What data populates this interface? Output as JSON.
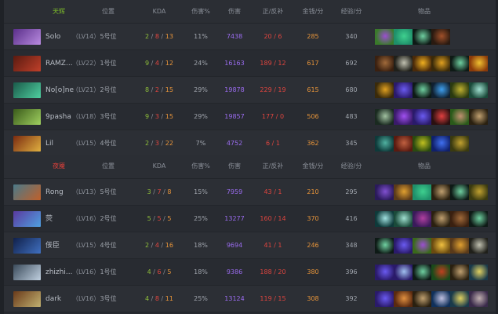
{
  "headers": {
    "position": "位置",
    "kda": "KDA",
    "damage_pct": "伤害%",
    "damage": "伤害",
    "lasthits": "正/反补",
    "gpm": "金钱/分",
    "xpm": "经验/分",
    "items": "物品"
  },
  "teams": [
    {
      "name": "天辉",
      "color": "#7fbf2a",
      "players": [
        {
          "name": "Solo",
          "level": "（LV14）",
          "position": "5号位",
          "k": "2",
          "d": "8",
          "a": "13",
          "damage_pct": "11%",
          "damage": "7438",
          "lasthits": "20 / 6",
          "gpm": "285",
          "xpm": "340",
          "avatar": [
            "#5a2f8a",
            "#b98be0"
          ],
          "items": [
            [
              "#3a7a2a",
              "#9b4fd0"
            ],
            [
              "#1f8f6a",
              "#3fd08f"
            ],
            [
              "#0e1a16",
              "#6fd0a0"
            ],
            [
              "#2a1a10",
              "#a0502a"
            ]
          ]
        },
        {
          "name": "RAMZ...",
          "level": "（LV22）",
          "position": "1号位",
          "k": "9",
          "d": "4",
          "a": "12",
          "damage_pct": "24%",
          "damage": "16163",
          "lasthits": "189 / 12",
          "gpm": "617",
          "xpm": "692",
          "avatar": [
            "#5a1a10",
            "#c0402a"
          ],
          "items": [
            [
              "#3a2010",
              "#a06a3a"
            ],
            [
              "#20201a",
              "#c0c0b0"
            ],
            [
              "#4a2a0a",
              "#f0b020"
            ],
            [
              "#3a2a0a",
              "#e0a020"
            ],
            [
              "#0e1a16",
              "#6fd0a0"
            ],
            [
              "#8a3a0a",
              "#f0c030"
            ]
          ]
        },
        {
          "name": "No[o]ne",
          "level": "（LV21）",
          "position": "2号位",
          "k": "8",
          "d": "2",
          "a": "15",
          "damage_pct": "29%",
          "damage": "19878",
          "lasthits": "229 / 19",
          "gpm": "615",
          "xpm": "680",
          "avatar": [
            "#1a5a4a",
            "#4fd0a0"
          ],
          "items": [
            [
              "#3a2a0a",
              "#e0a020"
            ],
            [
              "#2a1a6a",
              "#6a5af0"
            ],
            [
              "#0e1a16",
              "#6fd0a0"
            ],
            [
              "#102030",
              "#3fa0f0"
            ],
            [
              "#2a3a10",
              "#c0b030"
            ],
            [
              "#1a4a3a",
              "#a0e0d0"
            ]
          ]
        },
        {
          "name": "9pasha",
          "level": "（LV18）",
          "position": "3号位",
          "k": "9",
          "d": "3",
          "a": "15",
          "damage_pct": "29%",
          "damage": "19857",
          "lasthits": "177 / 0",
          "gpm": "506",
          "xpm": "483",
          "avatar": [
            "#3a5a1a",
            "#a0d060"
          ],
          "items": [
            [
              "#1a2a20",
              "#a0c0a0"
            ],
            [
              "#3a1a6a",
              "#a050f0"
            ],
            [
              "#2a1a6a",
              "#6a5af0"
            ],
            [
              "#2a1010",
              "#e04040"
            ],
            [
              "#2a5a1a",
              "#c09070"
            ],
            [
              "#2a2010",
              "#c0a070"
            ]
          ]
        },
        {
          "name": "Lil",
          "level": "（LV15）",
          "position": "4号位",
          "k": "2",
          "d": "3",
          "a": "22",
          "damage_pct": "7%",
          "damage": "4752",
          "lasthits": "6 / 1",
          "gpm": "362",
          "xpm": "345",
          "avatar": [
            "#7a2a10",
            "#e0b040"
          ],
          "items": [
            [
              "#0e3a3a",
              "#4fb0a0"
            ],
            [
              "#5a1a10",
              "#c06040"
            ],
            [
              "#2a4a10",
              "#c0c020"
            ],
            [
              "#10206a",
              "#4070f0"
            ],
            [
              "#3a3a10",
              "#c0a030"
            ]
          ]
        }
      ]
    },
    {
      "name": "夜魇",
      "color": "#e0403a",
      "players": [
        {
          "name": "Rong",
          "level": "（LV13）",
          "position": "5号位",
          "k": "3",
          "d": "7",
          "a": "8",
          "damage_pct": "15%",
          "damage": "7959",
          "lasthits": "43 / 1",
          "gpm": "210",
          "xpm": "295",
          "avatar": [
            "#4a7a8a",
            "#c0602a"
          ],
          "items": [
            [
              "#2a1a5a",
              "#8050d0"
            ],
            [
              "#5a3a1a",
              "#e0a030"
            ],
            [
              "#1f8f6a",
              "#3fd08f"
            ],
            [
              "#2a2010",
              "#c0a070"
            ],
            [
              "#0e1a16",
              "#6fd0a0"
            ],
            [
              "#3a3a10",
              "#c0a030"
            ]
          ]
        },
        {
          "name": "荧",
          "level": "（LV16）",
          "position": "2号位",
          "k": "5",
          "d": "5",
          "a": "5",
          "damage_pct": "25%",
          "damage": "13277",
          "lasthits": "160 / 14",
          "gpm": "370",
          "xpm": "416",
          "avatar": [
            "#5a3aa0",
            "#4fa0e0"
          ],
          "items": [
            [
              "#0e3a3a",
              "#a0e0e0"
            ],
            [
              "#1a4a3a",
              "#a0e0d0"
            ],
            [
              "#3a1a5a",
              "#b040a0"
            ],
            [
              "#2a2010",
              "#c0a070"
            ],
            [
              "#3a2010",
              "#a06a3a"
            ],
            [
              "#0e1a16",
              "#6fd0a0"
            ]
          ]
        },
        {
          "name": "佞臣",
          "level": "（LV15）",
          "position": "4号位",
          "k": "2",
          "d": "4",
          "a": "16",
          "damage_pct": "18%",
          "damage": "9694",
          "lasthits": "41 / 1",
          "gpm": "246",
          "xpm": "348",
          "avatar": [
            "#10204a",
            "#4070c0"
          ],
          "items": [
            [
              "#0e1a16",
              "#6fd0a0"
            ],
            [
              "#2a1a6a",
              "#6a5af0"
            ],
            [
              "#3a6a1a",
              "#9b4fd0"
            ],
            [
              "#6a4a10",
              "#f0c040"
            ],
            [
              "#5a3a1a",
              "#e0a030"
            ],
            [
              "#20201a",
              "#c0c0b0"
            ]
          ]
        },
        {
          "name": "zhizhi...",
          "level": "（LV16）",
          "position": "1号位",
          "k": "4",
          "d": "6",
          "a": "5",
          "damage_pct": "18%",
          "damage": "9386",
          "lasthits": "188 / 20",
          "gpm": "380",
          "xpm": "396",
          "avatar": [
            "#3a4a5a",
            "#c0d0e0"
          ],
          "items": [
            [
              "#2a1a6a",
              "#6a5af0"
            ],
            [
              "#2a1a6a",
              "#a0c0f0"
            ],
            [
              "#0e1a16",
              "#6fd0a0"
            ],
            [
              "#1a4a1a",
              "#c04020"
            ],
            [
              "#2a2010",
              "#c0a070"
            ],
            [
              "#1a3a4a",
              "#e0d060"
            ]
          ]
        },
        {
          "name": "dark",
          "level": "（LV16）",
          "position": "3号位",
          "k": "4",
          "d": "8",
          "a": "11",
          "damage_pct": "25%",
          "damage": "13124",
          "lasthits": "119 / 15",
          "gpm": "308",
          "xpm": "392",
          "avatar": [
            "#6a3a1a",
            "#c0b070"
          ],
          "items": [
            [
              "#2a1a6a",
              "#6a5af0"
            ],
            [
              "#5a2a10",
              "#e09040"
            ],
            [
              "#2a2010",
              "#c0a070"
            ],
            [
              "#10305a",
              "#c0c0e0"
            ],
            [
              "#1a3a4a",
              "#e0d060"
            ],
            [
              "#3a2a4a",
              "#c0b0b0"
            ]
          ]
        }
      ]
    }
  ]
}
